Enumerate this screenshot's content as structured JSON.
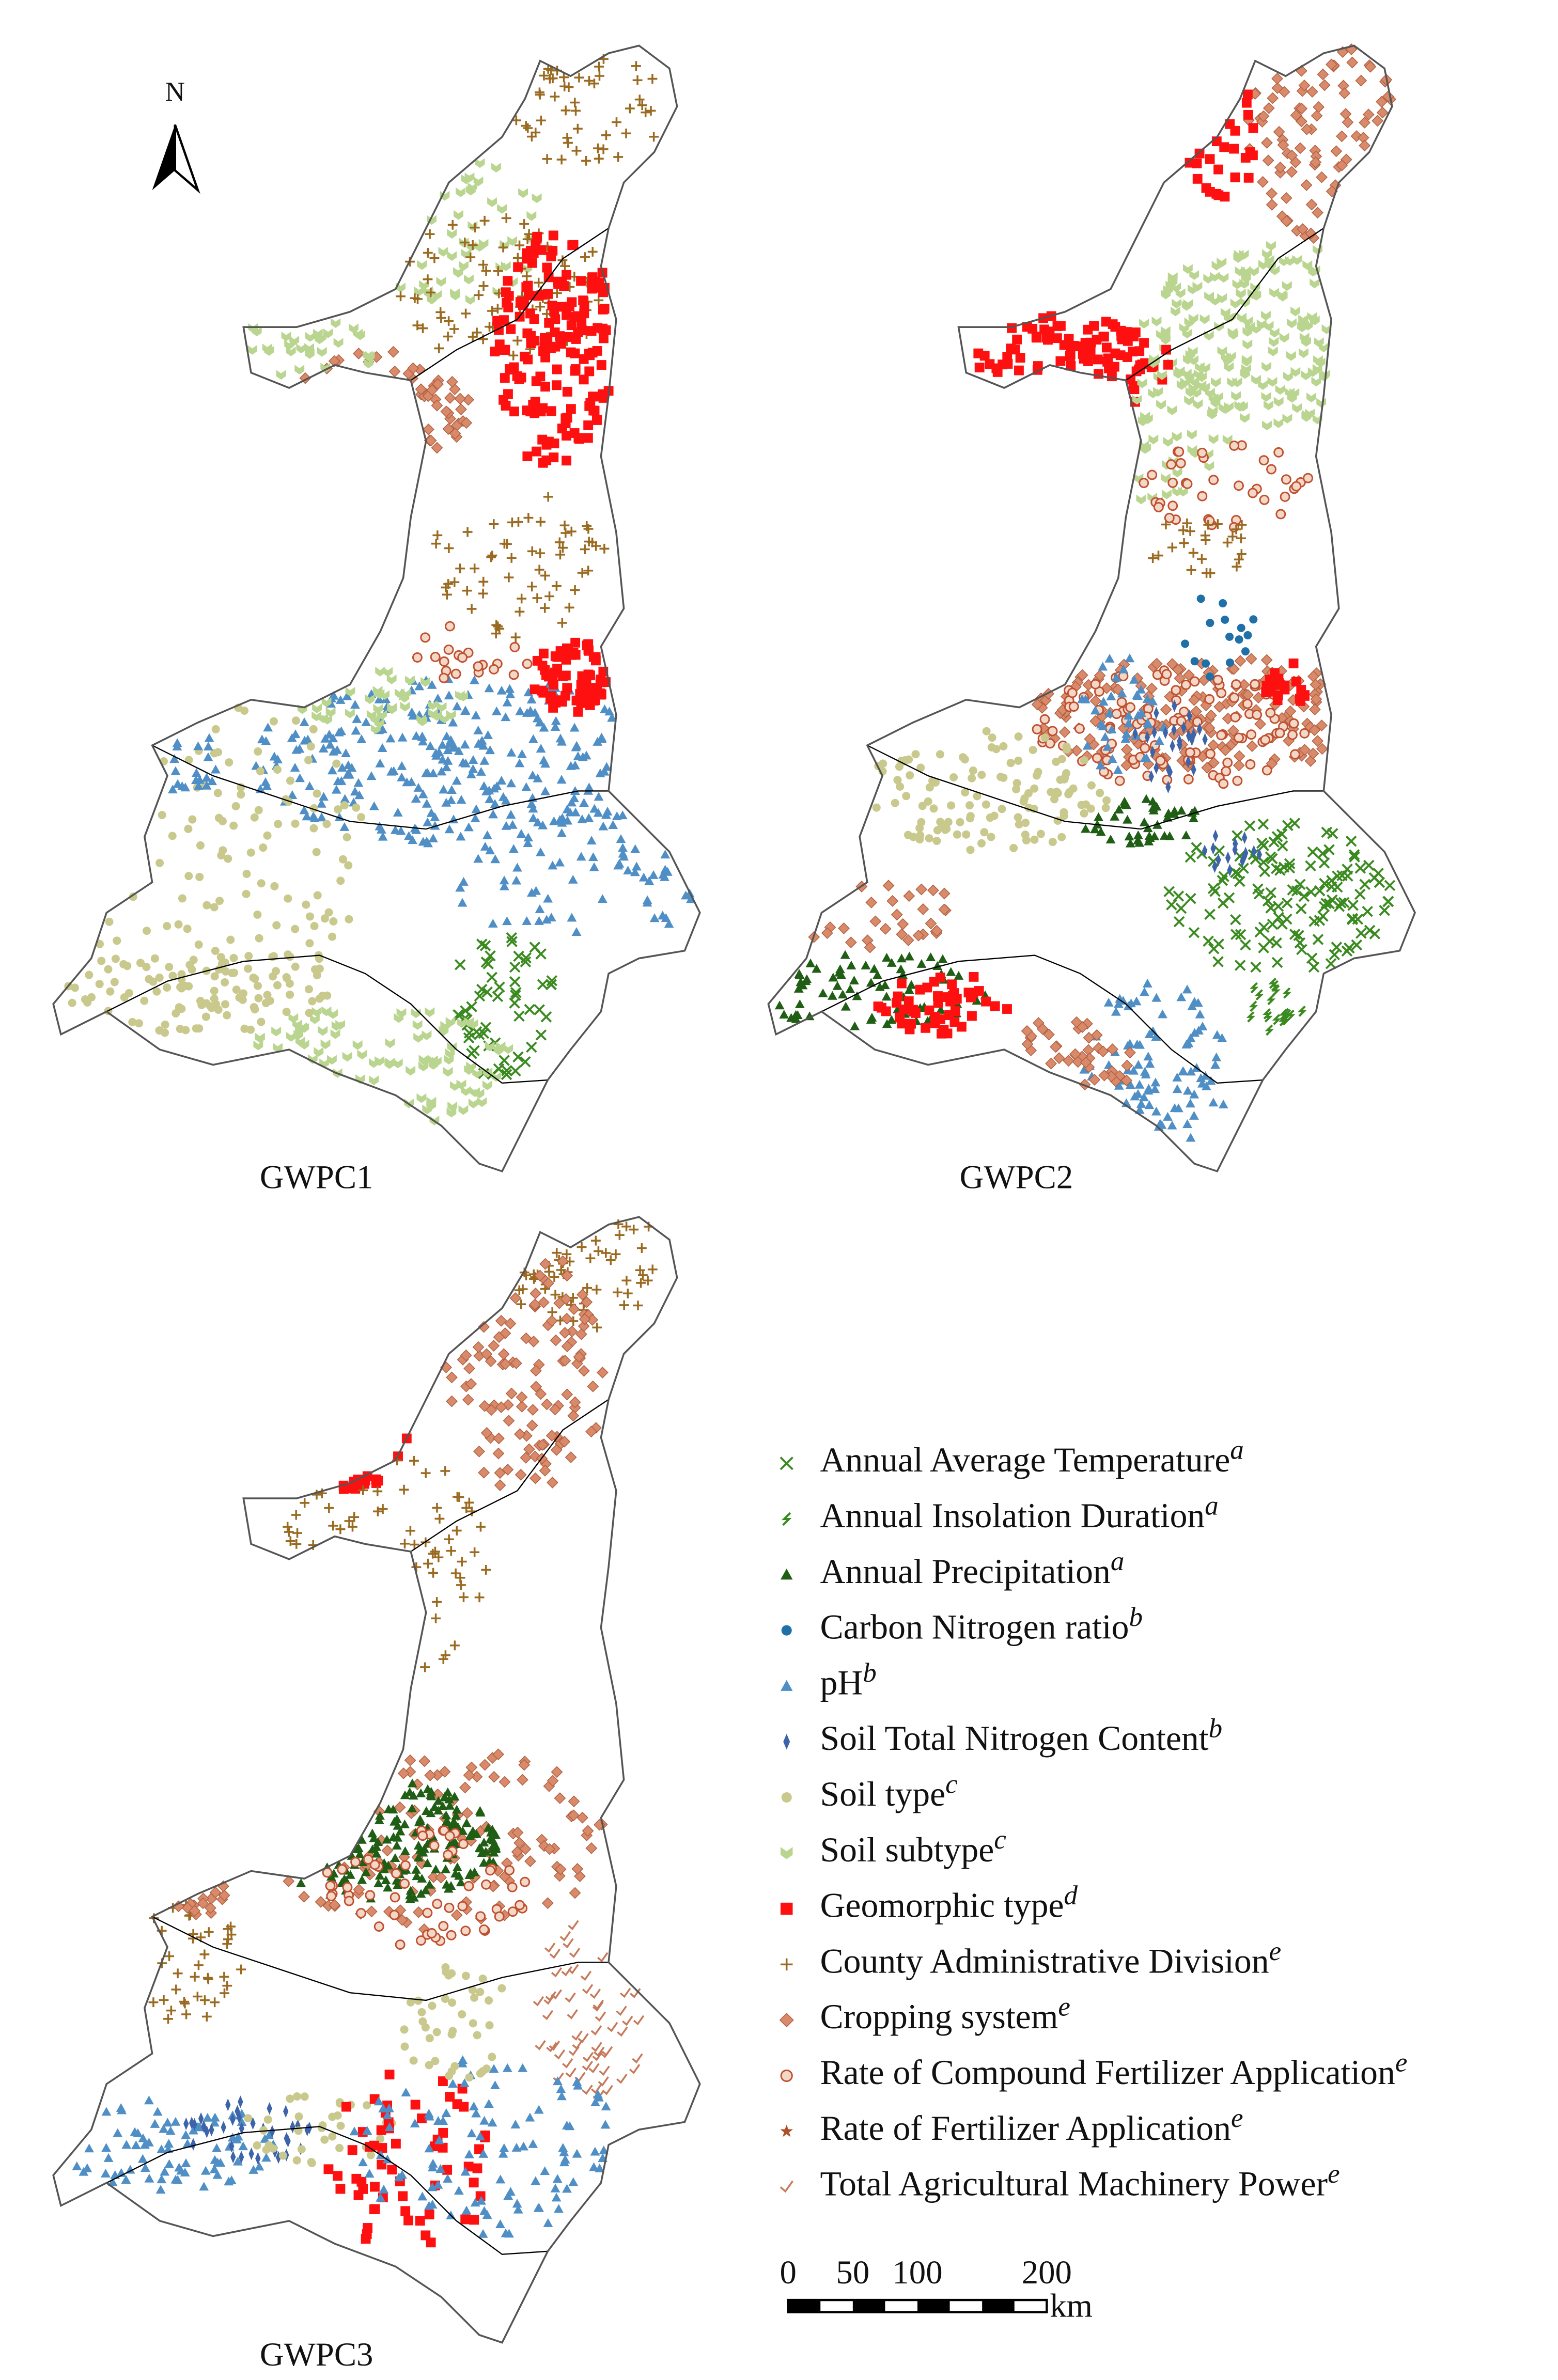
{
  "north": "N",
  "panels": [
    {
      "label": "GWPC1"
    },
    {
      "label": "GWPC2"
    },
    {
      "label": "GWPC3"
    }
  ],
  "legend": [
    {
      "label": "Annual Average Temperature",
      "sup": "a"
    },
    {
      "label": "Annual Insolation Duration",
      "sup": "a"
    },
    {
      "label": "Annual Precipitation",
      "sup": "a"
    },
    {
      "label": "Carbon Nitrogen ratio",
      "sup": "b"
    },
    {
      "label": "pH",
      "sup": "b"
    },
    {
      "label": "Soil Total Nitrogen Content",
      "sup": "b"
    },
    {
      "label": "Soil type",
      "sup": "c"
    },
    {
      "label": "Soil subtype",
      "sup": "c"
    },
    {
      "label": "Geomorphic type",
      "sup": "d"
    },
    {
      "label": "County Administrative Division",
      "sup": "e"
    },
    {
      "label": "Cropping system",
      "sup": "e"
    },
    {
      "label": "Rate of Compound Fertilizer Application",
      "sup": "e"
    },
    {
      "label": "Rate of Fertilizer Application",
      "sup": "e"
    },
    {
      "label": "Total Agricultural Machinery Power",
      "sup": "e"
    }
  ],
  "scale_bar": {
    "ticks": [
      0,
      50,
      100,
      200
    ],
    "unit": "km"
  }
}
